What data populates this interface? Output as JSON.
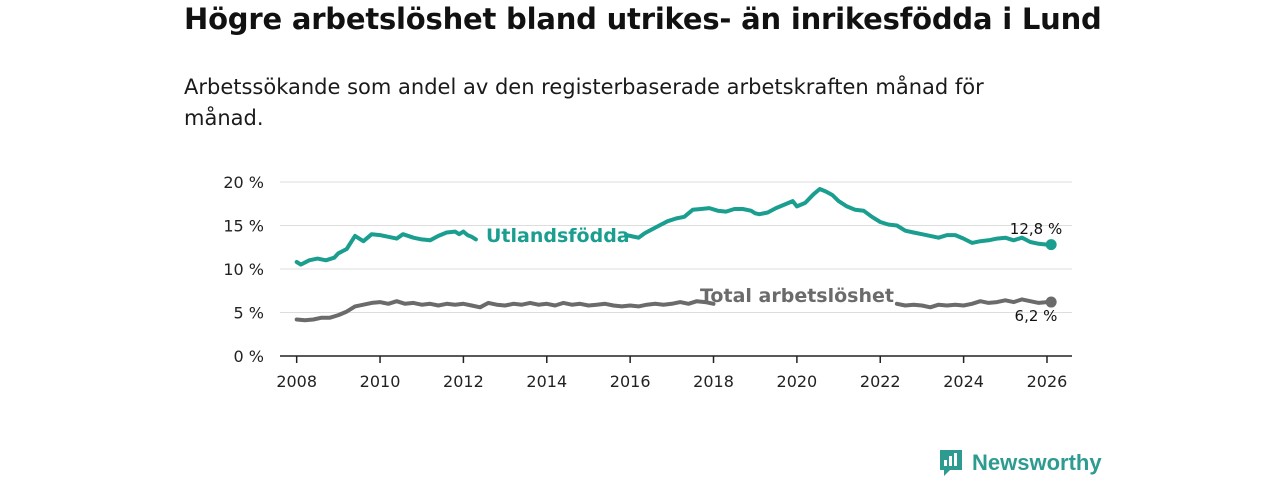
{
  "title": "Högre arbetslöshet bland utrikes- än inrikesfödda i Lund",
  "subtitle": "Arbetssökande som andel av den registerbaserade arbetskraften månad för månad.",
  "brand": {
    "name": "Newsworthy",
    "icon": "newsworthy-logo-icon"
  },
  "colors": {
    "foreign": "#1a9e8f",
    "total": "#6b6b6b",
    "grid": "#dddddd",
    "axis": "#222222"
  },
  "chart_data": {
    "type": "line",
    "xlabel": "",
    "ylabel": "",
    "xlim": [
      2007.6,
      2026.6
    ],
    "ylim": [
      0,
      20
    ],
    "x_ticks": [
      2008,
      2010,
      2012,
      2014,
      2016,
      2018,
      2020,
      2022,
      2024,
      2026
    ],
    "y_ticks": [
      0,
      5,
      10,
      15,
      20
    ],
    "y_tick_labels": [
      "0 %",
      "5 %",
      "10 %",
      "15 %",
      "20 %"
    ],
    "grid": true,
    "series": [
      {
        "name": "Utlandsfödda",
        "label": "Utlandsfödda",
        "end_label": "12,8 %",
        "points": [
          [
            2008.0,
            10.8
          ],
          [
            2008.1,
            10.5
          ],
          [
            2008.3,
            11.0
          ],
          [
            2008.5,
            11.2
          ],
          [
            2008.7,
            11.0
          ],
          [
            2008.9,
            11.3
          ],
          [
            2009.0,
            11.8
          ],
          [
            2009.2,
            12.3
          ],
          [
            2009.4,
            13.8
          ],
          [
            2009.6,
            13.2
          ],
          [
            2009.8,
            14.0
          ],
          [
            2010.0,
            13.9
          ],
          [
            2010.2,
            13.7
          ],
          [
            2010.4,
            13.5
          ],
          [
            2010.55,
            14.0
          ],
          [
            2010.8,
            13.6
          ],
          [
            2011.0,
            13.4
          ],
          [
            2011.2,
            13.3
          ],
          [
            2011.4,
            13.8
          ],
          [
            2011.6,
            14.2
          ],
          [
            2011.8,
            14.3
          ],
          [
            2011.9,
            14.0
          ],
          [
            2012.0,
            14.3
          ],
          [
            2012.1,
            13.9
          ],
          [
            2012.2,
            13.7
          ],
          [
            2012.3,
            13.4
          ],
          [
            2015.9,
            13.9
          ],
          [
            2016.0,
            13.8
          ],
          [
            2016.2,
            13.6
          ],
          [
            2016.35,
            14.1
          ],
          [
            2016.5,
            14.5
          ],
          [
            2016.7,
            15.0
          ],
          [
            2016.9,
            15.5
          ],
          [
            2017.1,
            15.8
          ],
          [
            2017.3,
            16.0
          ],
          [
            2017.5,
            16.8
          ],
          [
            2017.7,
            16.9
          ],
          [
            2017.9,
            17.0
          ],
          [
            2018.1,
            16.7
          ],
          [
            2018.3,
            16.6
          ],
          [
            2018.5,
            16.9
          ],
          [
            2018.7,
            16.9
          ],
          [
            2018.9,
            16.7
          ],
          [
            2019.0,
            16.4
          ],
          [
            2019.1,
            16.3
          ],
          [
            2019.3,
            16.5
          ],
          [
            2019.5,
            17.0
          ],
          [
            2019.7,
            17.4
          ],
          [
            2019.9,
            17.8
          ],
          [
            2020.0,
            17.2
          ],
          [
            2020.2,
            17.6
          ],
          [
            2020.4,
            18.6
          ],
          [
            2020.55,
            19.2
          ],
          [
            2020.7,
            18.9
          ],
          [
            2020.85,
            18.5
          ],
          [
            2021.0,
            17.8
          ],
          [
            2021.2,
            17.2
          ],
          [
            2021.4,
            16.8
          ],
          [
            2021.6,
            16.7
          ],
          [
            2021.8,
            16.0
          ],
          [
            2022.0,
            15.4
          ],
          [
            2022.2,
            15.1
          ],
          [
            2022.4,
            15.0
          ],
          [
            2022.6,
            14.4
          ],
          [
            2022.8,
            14.2
          ],
          [
            2023.0,
            14.0
          ],
          [
            2023.2,
            13.8
          ],
          [
            2023.4,
            13.6
          ],
          [
            2023.6,
            13.9
          ],
          [
            2023.8,
            13.9
          ],
          [
            2024.0,
            13.5
          ],
          [
            2024.2,
            13.0
          ],
          [
            2024.4,
            13.2
          ],
          [
            2024.6,
            13.3
          ],
          [
            2024.8,
            13.5
          ],
          [
            2025.0,
            13.6
          ],
          [
            2025.2,
            13.3
          ],
          [
            2025.4,
            13.6
          ],
          [
            2025.6,
            13.1
          ],
          [
            2025.8,
            12.9
          ],
          [
            2026.0,
            12.8
          ],
          [
            2026.1,
            12.8
          ]
        ]
      },
      {
        "name": "Total arbetslöshet",
        "label": "Total arbetslöshet",
        "end_label": "6,2 %",
        "points": [
          [
            2008.0,
            4.2
          ],
          [
            2008.2,
            4.1
          ],
          [
            2008.4,
            4.2
          ],
          [
            2008.6,
            4.4
          ],
          [
            2008.8,
            4.4
          ],
          [
            2009.0,
            4.7
          ],
          [
            2009.2,
            5.1
          ],
          [
            2009.4,
            5.7
          ],
          [
            2009.6,
            5.9
          ],
          [
            2009.8,
            6.1
          ],
          [
            2010.0,
            6.2
          ],
          [
            2010.2,
            6.0
          ],
          [
            2010.4,
            6.3
          ],
          [
            2010.6,
            6.0
          ],
          [
            2010.8,
            6.1
          ],
          [
            2011.0,
            5.9
          ],
          [
            2011.2,
            6.0
          ],
          [
            2011.4,
            5.8
          ],
          [
            2011.6,
            6.0
          ],
          [
            2011.8,
            5.9
          ],
          [
            2012.0,
            6.0
          ],
          [
            2012.2,
            5.8
          ],
          [
            2012.4,
            5.6
          ],
          [
            2012.6,
            6.1
          ],
          [
            2012.8,
            5.9
          ],
          [
            2013.0,
            5.8
          ],
          [
            2013.2,
            6.0
          ],
          [
            2013.4,
            5.9
          ],
          [
            2013.6,
            6.1
          ],
          [
            2013.8,
            5.9
          ],
          [
            2014.0,
            6.0
          ],
          [
            2014.2,
            5.8
          ],
          [
            2014.4,
            6.1
          ],
          [
            2014.6,
            5.9
          ],
          [
            2014.8,
            6.0
          ],
          [
            2015.0,
            5.8
          ],
          [
            2015.2,
            5.9
          ],
          [
            2015.4,
            6.0
          ],
          [
            2015.6,
            5.8
          ],
          [
            2015.8,
            5.7
          ],
          [
            2016.0,
            5.8
          ],
          [
            2016.2,
            5.7
          ],
          [
            2016.4,
            5.9
          ],
          [
            2016.6,
            6.0
          ],
          [
            2016.8,
            5.9
          ],
          [
            2017.0,
            6.0
          ],
          [
            2017.2,
            6.2
          ],
          [
            2017.4,
            6.0
          ],
          [
            2017.6,
            6.3
          ],
          [
            2017.8,
            6.2
          ],
          [
            2018.0,
            6.0
          ],
          [
            2022.4,
            6.0
          ],
          [
            2022.6,
            5.8
          ],
          [
            2022.8,
            5.9
          ],
          [
            2023.0,
            5.8
          ],
          [
            2023.2,
            5.6
          ],
          [
            2023.4,
            5.9
          ],
          [
            2023.6,
            5.8
          ],
          [
            2023.8,
            5.9
          ],
          [
            2024.0,
            5.8
          ],
          [
            2024.2,
            6.0
          ],
          [
            2024.4,
            6.3
          ],
          [
            2024.6,
            6.1
          ],
          [
            2024.8,
            6.2
          ],
          [
            2025.0,
            6.4
          ],
          [
            2025.2,
            6.2
          ],
          [
            2025.4,
            6.5
          ],
          [
            2025.6,
            6.3
          ],
          [
            2025.8,
            6.1
          ],
          [
            2026.0,
            6.2
          ],
          [
            2026.1,
            6.2
          ]
        ]
      }
    ]
  }
}
